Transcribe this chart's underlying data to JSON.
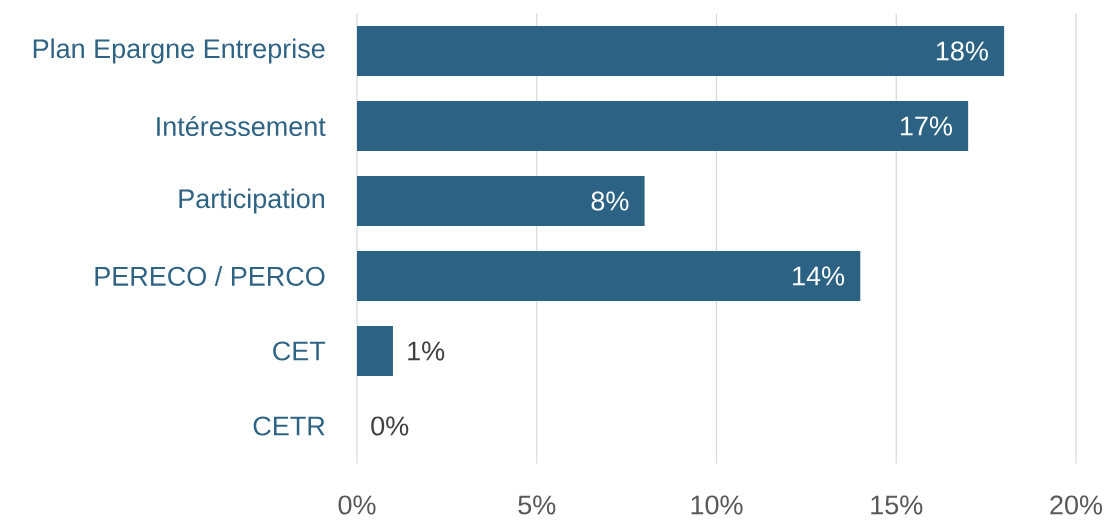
{
  "chart_data": {
    "type": "bar",
    "orientation": "horizontal",
    "categories": [
      "Plan Epargne Entreprise",
      "Intéressement",
      "Participation",
      "PERECO / PERCO",
      "CET",
      "CETR"
    ],
    "values": [
      18,
      17,
      8,
      14,
      1,
      0
    ],
    "color": "#2c6384",
    "xlim": [
      0,
      20
    ],
    "xticks": [
      {
        "value": 0,
        "label": "0%"
      },
      {
        "value": 5,
        "label": "5%"
      },
      {
        "value": 10,
        "label": "10%"
      },
      {
        "value": 15,
        "label": "15%"
      },
      {
        "value": 20,
        "label": "20%"
      }
    ],
    "grid": "x",
    "value_labels": [
      "18%",
      "17%",
      "8%",
      "14%",
      "1%",
      "0%"
    ]
  }
}
